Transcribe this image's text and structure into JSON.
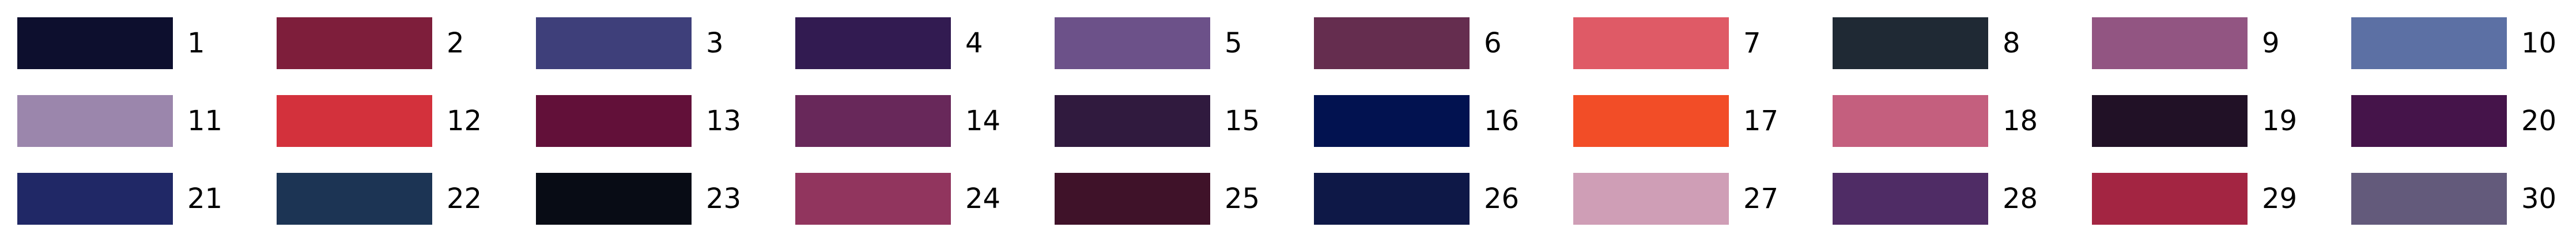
{
  "swatches": [
    {
      "label": "1",
      "color": "#0d0f2e"
    },
    {
      "label": "2",
      "color": "#7e1e3b"
    },
    {
      "label": "3",
      "color": "#3e3f7a"
    },
    {
      "label": "4",
      "color": "#321b51"
    },
    {
      "label": "5",
      "color": "#6c5189"
    },
    {
      "label": "6",
      "color": "#652d4f"
    },
    {
      "label": "7",
      "color": "#df5a66"
    },
    {
      "label": "8",
      "color": "#1f2934"
    },
    {
      "label": "9",
      "color": "#925582"
    },
    {
      "label": "10",
      "color": "#5c70a4"
    },
    {
      "label": "11",
      "color": "#9b86ac"
    },
    {
      "label": "12",
      "color": "#d3313c"
    },
    {
      "label": "13",
      "color": "#621039"
    },
    {
      "label": "14",
      "color": "#68285a"
    },
    {
      "label": "15",
      "color": "#301a3e"
    },
    {
      "label": "16",
      "color": "#021250"
    },
    {
      "label": "17",
      "color": "#f24d27"
    },
    {
      "label": "18",
      "color": "#c45f7e"
    },
    {
      "label": "19",
      "color": "#211126"
    },
    {
      "label": "20",
      "color": "#45144a"
    },
    {
      "label": "21",
      "color": "#202866"
    },
    {
      "label": "22",
      "color": "#1c3454"
    },
    {
      "label": "23",
      "color": "#080c15"
    },
    {
      "label": "24",
      "color": "#91355e"
    },
    {
      "label": "25",
      "color": "#3f1229"
    },
    {
      "label": "26",
      "color": "#0e1847"
    },
    {
      "label": "27",
      "color": "#cf9eb6"
    },
    {
      "label": "28",
      "color": "#4f2c65"
    },
    {
      "label": "29",
      "color": "#a32542"
    },
    {
      "label": "30",
      "color": "#635a7b"
    }
  ]
}
